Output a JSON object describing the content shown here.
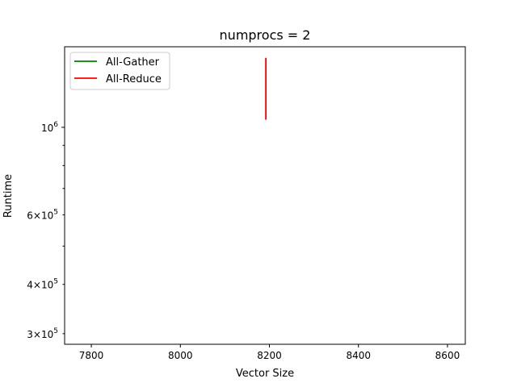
{
  "chart_data": {
    "type": "line",
    "title": "numprocs = 2",
    "xlabel": "Vector Size",
    "ylabel": "Runtime",
    "xlim": [
      7740,
      8640
    ],
    "ylim": [
      282000,
      1600000
    ],
    "yscale": "log",
    "grid": false,
    "legend": "upper-left",
    "xticks": [
      7800,
      8000,
      8200,
      8400,
      8600
    ],
    "xtick_labels": [
      "7800",
      "8000",
      "8200",
      "8400",
      "8600"
    ],
    "yticks_major": [
      1000000
    ],
    "ytick_major_labels": [
      {
        "base": "10",
        "exp": "6"
      }
    ],
    "yticks_minor": [
      300000,
      400000,
      500000,
      600000,
      700000,
      800000,
      900000
    ],
    "ytick_minor_labels": [
      {
        "value": 300000,
        "mantissa": "3",
        "times": "×",
        "base": "10",
        "exp": "5"
      },
      {
        "value": 400000,
        "mantissa": "4",
        "times": "×",
        "base": "10",
        "exp": "5"
      },
      {
        "value": 600000,
        "mantissa": "6",
        "times": "×",
        "base": "10",
        "exp": "5"
      }
    ],
    "series": [
      {
        "name": "All-Gather",
        "color": "#008000",
        "x": [
          8192
        ],
        "y": [
          1500000
        ]
      },
      {
        "name": "All-Reduce",
        "color": "#ff0000",
        "x": [
          8192,
          8192
        ],
        "y": [
          1045000,
          1500000
        ]
      }
    ]
  }
}
